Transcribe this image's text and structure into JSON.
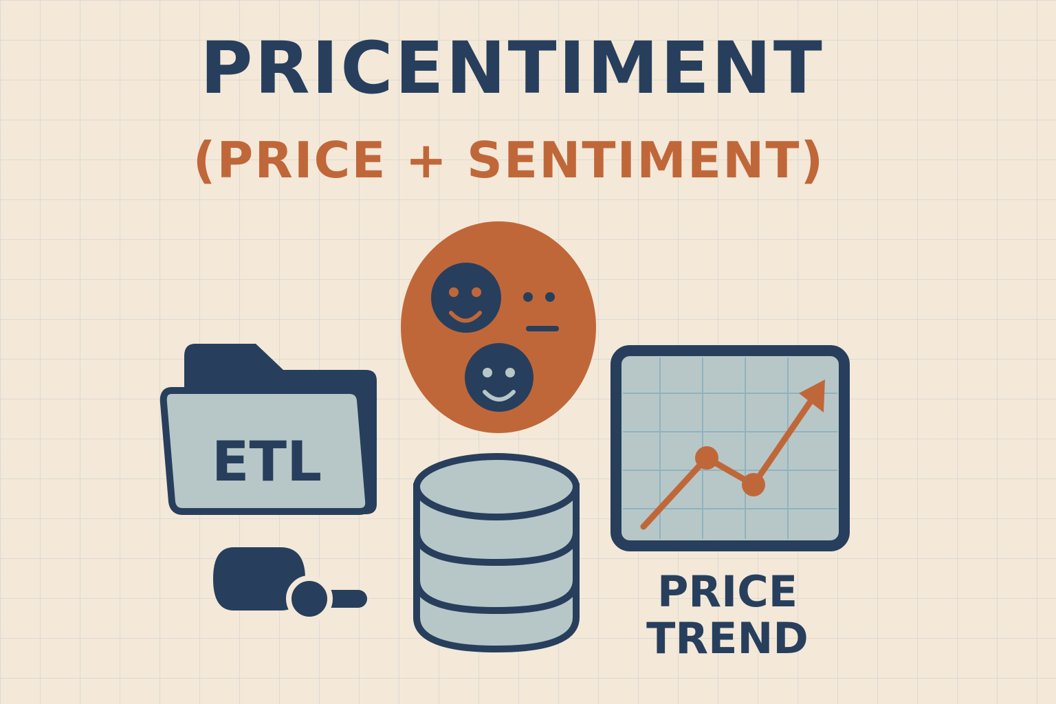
{
  "header": {
    "title": "PRICENTIMENT",
    "subtitle": "(PRICE + SENTIMENT)"
  },
  "etl": {
    "label": "ETL",
    "icon": "folder-icon"
  },
  "sentiment": {
    "icon": "sentiment-faces-icon"
  },
  "storage": {
    "icon": "database-icon"
  },
  "toggle": {
    "icon": "toggle-switch-icon"
  },
  "trend": {
    "icon": "trend-chart-icon",
    "label_line1": "PRICE",
    "label_line2": "TREND"
  },
  "colors": {
    "navy": "#273f5c",
    "orange": "#c0673a",
    "light_blue": "#b7c7c8",
    "background": "#f4e8d8"
  }
}
